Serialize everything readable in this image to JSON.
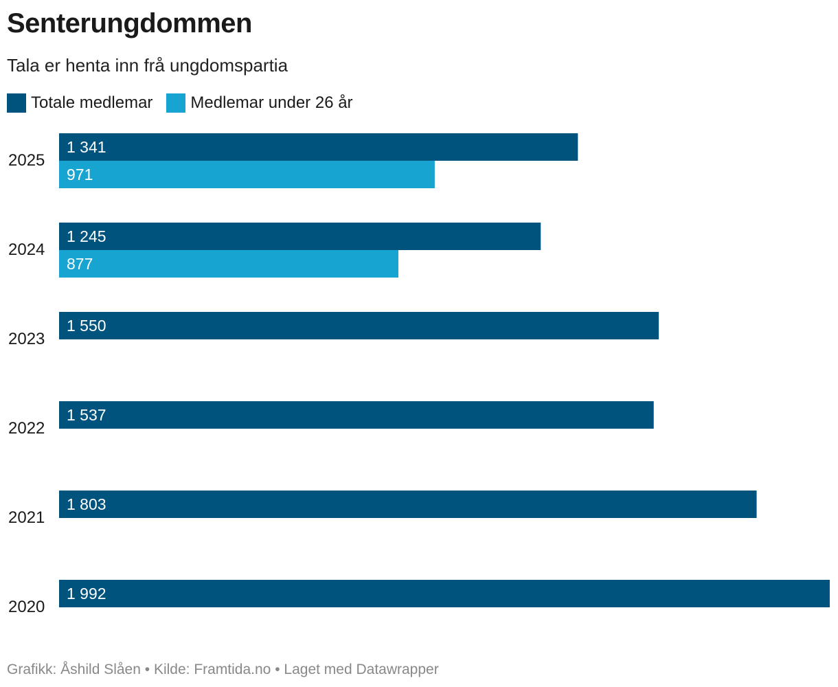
{
  "title": "Senterungdommen",
  "subtitle": "Tala er henta inn frå ungdomspartia",
  "chart_data": {
    "type": "bar",
    "orientation": "horizontal",
    "categories": [
      "2025",
      "2024",
      "2023",
      "2022",
      "2021",
      "2020"
    ],
    "series": [
      {
        "name": "Totale medlemar",
        "color": "#00537c",
        "values": [
          1341,
          1245,
          1550,
          1537,
          1803,
          1992
        ],
        "labels": [
          "1 341",
          "1 245",
          "1 550",
          "1 537",
          "1 803",
          "1 992"
        ]
      },
      {
        "name": "Medlemar under 26 år",
        "color": "#18a4d0",
        "values": [
          971,
          877,
          null,
          null,
          null,
          null
        ],
        "labels": [
          "971",
          "877",
          "",
          "",
          "",
          ""
        ]
      }
    ],
    "xlim": [
      0,
      1992
    ],
    "grid": false,
    "legend": "top-left"
  },
  "footer": {
    "credit": "Grafikk: Åshild Slåen",
    "separator": " • ",
    "source": "Kilde: Framtida.no",
    "made_with": "Laget med Datawrapper"
  }
}
